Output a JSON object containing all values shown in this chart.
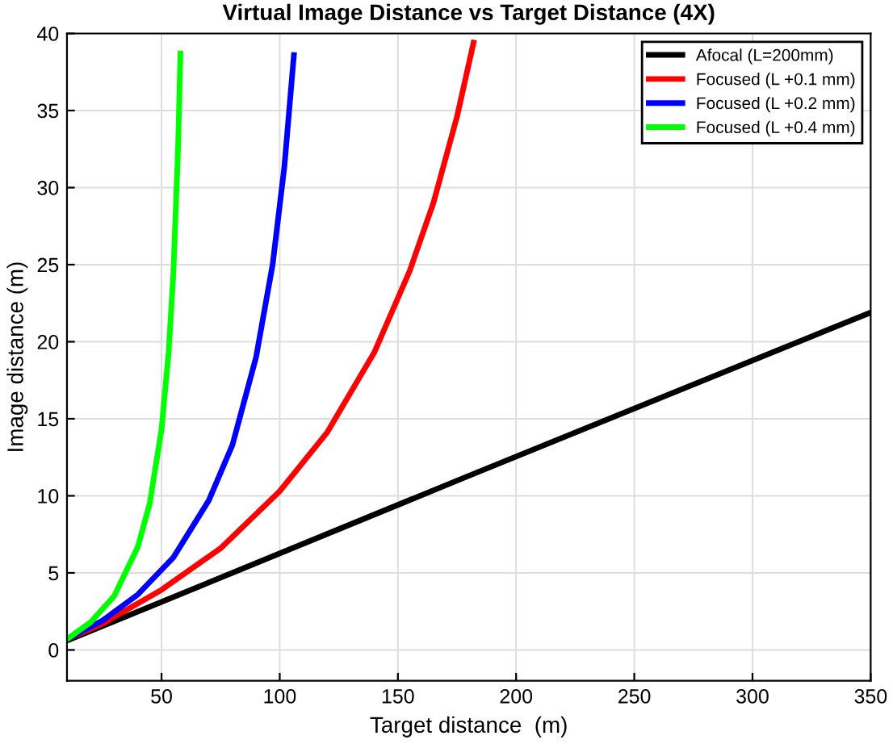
{
  "chart_data": {
    "type": "line",
    "title": "Virtual Image Distance vs Target Distance (4X)",
    "xlabel": "Target distance  (m)",
    "ylabel": "Image distance (m)",
    "xlim": [
      10,
      350
    ],
    "xticks": [
      50,
      100,
      150,
      200,
      250,
      300,
      350
    ],
    "ylim": [
      -2,
      40
    ],
    "yticks": [
      0,
      5,
      10,
      15,
      20,
      25,
      30,
      35,
      40
    ],
    "grid": true,
    "legend": "top right",
    "line_style": "solid",
    "marker": "none",
    "series": [
      {
        "name": "Afocal (L=200mm)",
        "color": "#000000",
        "x": [
          10,
          180,
          350
        ],
        "values": [
          0.6,
          11.3,
          21.9
        ]
      },
      {
        "name": "Focused (L +0.1 mm)",
        "color": "#ff0000",
        "x": [
          10,
          25,
          50,
          75,
          100,
          120,
          140,
          155,
          165,
          175,
          182
        ],
        "values": [
          0.7,
          1.7,
          3.9,
          6.6,
          10.3,
          14.1,
          19.3,
          24.6,
          29.0,
          34.6,
          39.4
        ]
      },
      {
        "name": "Focused (L +0.2 mm)",
        "color": "#0000ff",
        "x": [
          10,
          25,
          40,
          55,
          70,
          80,
          90,
          97,
          102,
          106
        ],
        "values": [
          0.7,
          1.9,
          3.6,
          6.0,
          9.7,
          13.3,
          19.0,
          25.0,
          31.4,
          38.6
        ]
      },
      {
        "name": "Focused (L +0.4 mm)",
        "color": "#00ff00",
        "x": [
          10,
          20,
          30,
          40,
          45,
          50,
          53,
          55,
          57,
          58
        ],
        "values": [
          0.7,
          1.8,
          3.5,
          6.7,
          9.5,
          14.3,
          19.3,
          24.4,
          32.6,
          38.7
        ]
      }
    ]
  }
}
